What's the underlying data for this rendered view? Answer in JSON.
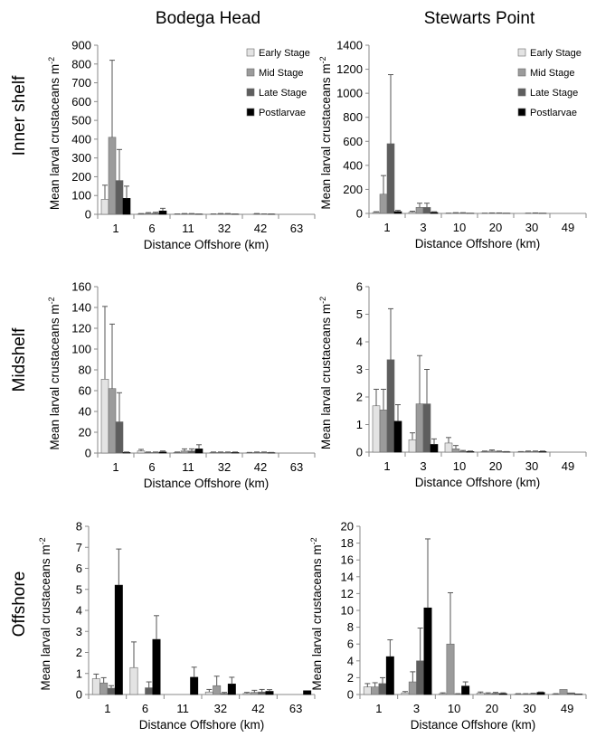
{
  "figure": {
    "column_titles": [
      "Bodega Head",
      "Stewarts Point"
    ],
    "row_titles": [
      "Inner shelf",
      "Midshelf",
      "Offshore"
    ]
  },
  "legend": {
    "placement": "top-right",
    "entries": [
      "Early Stage",
      "Mid Stage",
      "Late Stage",
      "Postlarvae"
    ]
  },
  "colors": {
    "early": "#e3e3e3",
    "mid": "#9b9b9b",
    "late": "#5e5e5e",
    "post": "#000000",
    "axis": "#8a8a8a",
    "error": "#555555"
  },
  "chart_data": [
    {
      "type": "bar",
      "column": "Bodega Head",
      "row": "Inner shelf",
      "categories": [
        "1",
        "6",
        "11",
        "32",
        "42",
        "63"
      ],
      "series": [
        {
          "name": "Early Stage",
          "values": [
            80,
            2,
            1,
            1,
            0,
            0
          ],
          "errors": [
            75,
            2,
            1,
            1,
            0,
            0
          ]
        },
        {
          "name": "Mid Stage",
          "values": [
            410,
            5,
            2,
            2,
            2,
            0
          ],
          "errors": [
            410,
            4,
            2,
            2,
            2,
            0
          ]
        },
        {
          "name": "Late Stage",
          "values": [
            180,
            6,
            2,
            2,
            1,
            0
          ],
          "errors": [
            165,
            5,
            2,
            2,
            1,
            0
          ]
        },
        {
          "name": "Postlarvae",
          "values": [
            85,
            18,
            1,
            1,
            1,
            0
          ],
          "errors": [
            65,
            14,
            1,
            1,
            1,
            0
          ]
        }
      ],
      "yticks": [
        0,
        100,
        200,
        300,
        400,
        500,
        600,
        700,
        800,
        900
      ],
      "ylim": [
        0,
        900
      ],
      "xlabel": "Distance Offshore (km)",
      "ylabel": "Mean larval crustaceans m",
      "ylabel_sup": "-2",
      "show_legend": true
    },
    {
      "type": "bar",
      "column": "Stewarts Point",
      "row": "Inner shelf",
      "categories": [
        "1",
        "3",
        "10",
        "20",
        "30",
        "49"
      ],
      "series": [
        {
          "name": "Early Stage",
          "values": [
            8,
            10,
            1,
            1,
            0,
            0
          ],
          "errors": [
            6,
            8,
            1,
            1,
            0,
            0
          ]
        },
        {
          "name": "Mid Stage",
          "values": [
            160,
            50,
            3,
            2,
            1,
            0
          ],
          "errors": [
            155,
            35,
            3,
            2,
            1,
            0
          ]
        },
        {
          "name": "Late Stage",
          "values": [
            580,
            50,
            3,
            2,
            2,
            0
          ],
          "errors": [
            575,
            35,
            3,
            2,
            2,
            0
          ]
        },
        {
          "name": "Postlarvae",
          "values": [
            15,
            8,
            1,
            1,
            1,
            0
          ],
          "errors": [
            10,
            6,
            1,
            1,
            1,
            0
          ]
        }
      ],
      "yticks": [
        0,
        200,
        400,
        600,
        800,
        1000,
        1200,
        1400
      ],
      "ylim": [
        0,
        1400
      ],
      "xlabel": "Distance Offshore (km)",
      "ylabel": "Mean larval crustaceans m",
      "ylabel_sup": "-2",
      "show_legend": true
    },
    {
      "type": "bar",
      "column": "Bodega Head",
      "row": "Midshelf",
      "categories": [
        "1",
        "6",
        "11",
        "32",
        "42",
        "63"
      ],
      "series": [
        {
          "name": "Early Stage",
          "values": [
            71,
            2,
            0.5,
            0.5,
            0.3,
            0
          ],
          "errors": [
            70,
            1.5,
            0.5,
            0.5,
            0.3,
            0
          ]
        },
        {
          "name": "Mid Stage",
          "values": [
            62,
            0.5,
            2,
            0.5,
            0.5,
            0
          ],
          "errors": [
            62,
            0.5,
            2,
            0.5,
            0.5,
            0
          ]
        },
        {
          "name": "Late Stage",
          "values": [
            30,
            0.5,
            2,
            0.5,
            0.5,
            0
          ],
          "errors": [
            28,
            0.5,
            2,
            0.5,
            0.5,
            0
          ]
        },
        {
          "name": "Postlarvae",
          "values": [
            0.5,
            1,
            4,
            0.5,
            0.3,
            0
          ],
          "errors": [
            0.5,
            1,
            4,
            0.5,
            0.3,
            0
          ]
        }
      ],
      "yticks": [
        0,
        20,
        40,
        60,
        80,
        100,
        120,
        140,
        160
      ],
      "ylim": [
        0,
        160
      ],
      "xlabel": "Distance Offshore (km)",
      "ylabel": "Mean larval crustaceans m",
      "ylabel_sup": "-2",
      "show_legend": false
    },
    {
      "type": "bar",
      "column": "Stewarts Point",
      "row": "Midshelf",
      "categories": [
        "1",
        "3",
        "10",
        "20",
        "30",
        "49"
      ],
      "series": [
        {
          "name": "Early Stage",
          "values": [
            1.68,
            0.45,
            0.33,
            0.02,
            0.01,
            0
          ],
          "errors": [
            0.6,
            0.25,
            0.2,
            0.02,
            0.01,
            0
          ]
        },
        {
          "name": "Mid Stage",
          "values": [
            1.53,
            1.75,
            0.12,
            0.04,
            0.02,
            0
          ],
          "errors": [
            0.75,
            1.75,
            0.12,
            0.04,
            0.02,
            0
          ]
        },
        {
          "name": "Late Stage",
          "values": [
            3.35,
            1.75,
            0.03,
            0.02,
            0.02,
            0
          ],
          "errors": [
            1.85,
            1.25,
            0.03,
            0.02,
            0.02,
            0
          ]
        },
        {
          "name": "Postlarvae",
          "values": [
            1.12,
            0.28,
            0.02,
            0.01,
            0.02,
            0
          ],
          "errors": [
            0.6,
            0.2,
            0.02,
            0.01,
            0.02,
            0
          ]
        }
      ],
      "yticks": [
        0,
        1,
        2,
        3,
        4,
        5,
        6
      ],
      "ylim": [
        0,
        6
      ],
      "xlabel": "Distance Offshore (km)",
      "ylabel": "Mean larval crustaceans m",
      "ylabel_sup": "-2",
      "show_legend": false
    },
    {
      "type": "bar",
      "column": "Bodega Head",
      "row": "Offshore",
      "categories": [
        "1",
        "6",
        "11",
        "32",
        "42",
        "63"
      ],
      "series": [
        {
          "name": "Early Stage",
          "values": [
            0.75,
            1.28,
            0,
            0.12,
            0.05,
            0
          ],
          "errors": [
            0.22,
            1.22,
            0,
            0.12,
            0.05,
            0
          ]
        },
        {
          "name": "Mid Stage",
          "values": [
            0.55,
            0,
            0,
            0.42,
            0.1,
            0
          ],
          "errors": [
            0.25,
            0,
            0,
            0.45,
            0.1,
            0
          ]
        },
        {
          "name": "Late Stage",
          "values": [
            0.3,
            0.32,
            0,
            0.05,
            0.12,
            0
          ],
          "errors": [
            0.12,
            0.28,
            0,
            0.05,
            0.12,
            0
          ]
        },
        {
          "name": "Postlarvae",
          "values": [
            5.2,
            2.62,
            0.82,
            0.5,
            0.15,
            0.18
          ],
          "errors": [
            1.72,
            1.13,
            0.48,
            0.32,
            0.08,
            0
          ]
        }
      ],
      "yticks": [
        0,
        1,
        2,
        3,
        4,
        5,
        6,
        7,
        8
      ],
      "ylim": [
        0,
        8
      ],
      "xlabel": "Distance Offshore (km)",
      "ylabel": "Mean larval crustaceans m",
      "ylabel_sup": "-2",
      "show_legend": false
    },
    {
      "type": "bar",
      "column": "Stewarts Point",
      "row": "Offshore",
      "categories": [
        "1",
        "3",
        "10",
        "20",
        "30",
        "49"
      ],
      "series": [
        {
          "name": "Early Stage",
          "values": [
            0.9,
            0.2,
            0.1,
            0.15,
            0.05,
            0.05
          ],
          "errors": [
            0.4,
            0.15,
            0.1,
            0.15,
            0.05,
            0.05
          ]
        },
        {
          "name": "Mid Stage",
          "values": [
            0.9,
            1.5,
            6.0,
            0.1,
            0.05,
            0.6
          ],
          "errors": [
            0.5,
            1.2,
            6.1,
            0.1,
            0.05,
            0
          ]
        },
        {
          "name": "Late Stage",
          "values": [
            1.3,
            4.0,
            0.05,
            0.15,
            0.1,
            0.2
          ],
          "errors": [
            0.7,
            3.9,
            0.05,
            0.1,
            0.05,
            0
          ]
        },
        {
          "name": "Postlarvae",
          "values": [
            4.5,
            10.3,
            1.0,
            0.1,
            0.25,
            0.05
          ],
          "errors": [
            2.0,
            8.2,
            0.5,
            0.1,
            0.05,
            0
          ]
        }
      ],
      "yticks": [
        0,
        2,
        4,
        6,
        8,
        10,
        12,
        14,
        16,
        18,
        20
      ],
      "ylim": [
        0,
        20
      ],
      "xlabel": "Distance Offshore (km)",
      "ylabel": "Mean larval crustaceans m",
      "ylabel_sup": "-2",
      "show_legend": false
    }
  ]
}
